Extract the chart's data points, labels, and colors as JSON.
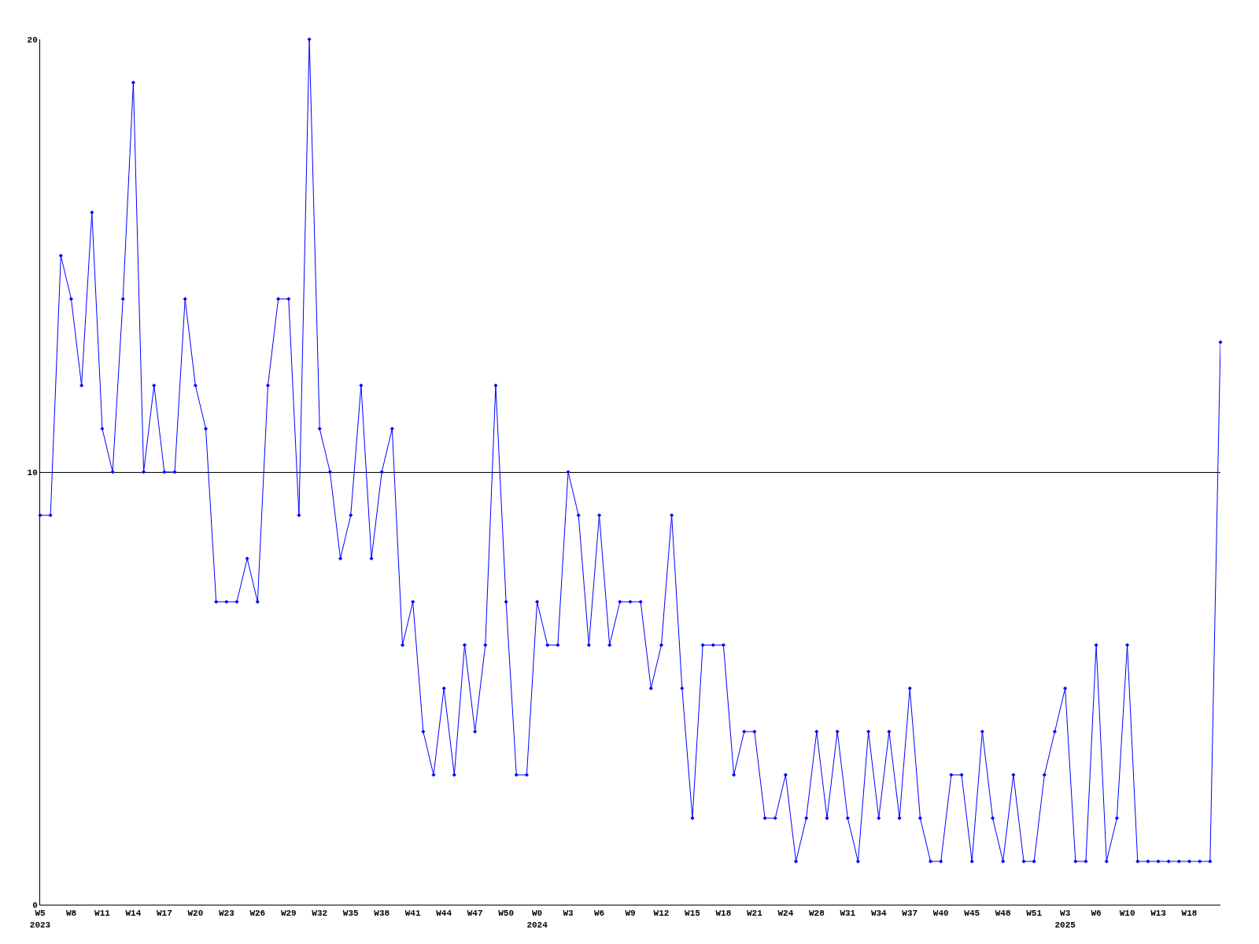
{
  "chart_data": {
    "type": "line",
    "categories": [
      "W5\n2023",
      null,
      null,
      "W8",
      null,
      null,
      "W11",
      null,
      null,
      "W14",
      null,
      null,
      "W17",
      null,
      null,
      "W20",
      null,
      null,
      "W23",
      null,
      null,
      "W26",
      null,
      null,
      "W29",
      null,
      null,
      "W32",
      null,
      null,
      "W35",
      null,
      null,
      "W38",
      null,
      null,
      "W41",
      null,
      null,
      "W44",
      null,
      null,
      "W47",
      null,
      null,
      "W50",
      null,
      null,
      "W0\n2024",
      null,
      null,
      "W3",
      null,
      null,
      "W6",
      null,
      null,
      "W9",
      null,
      null,
      "W12",
      null,
      null,
      "W15",
      null,
      null,
      "W18",
      null,
      null,
      "W21",
      null,
      null,
      "W24",
      null,
      null,
      "W28",
      null,
      null,
      "W31",
      null,
      null,
      "W34",
      null,
      null,
      "W37",
      null,
      null,
      "W40",
      null,
      null,
      "W45",
      null,
      null,
      "W48",
      null,
      null,
      "W51",
      null,
      null,
      "W3\n2025",
      null,
      null,
      "W6",
      null,
      null,
      "W10",
      null,
      null,
      "W13",
      null,
      null,
      "W18",
      null,
      null,
      null
    ],
    "series": [
      {
        "color": "#0000ff",
        "values": [
          9,
          9,
          15,
          14,
          12,
          16,
          11,
          10,
          14,
          19,
          10,
          12,
          10,
          10,
          14,
          12,
          11,
          7,
          7,
          7,
          8,
          7,
          12,
          14,
          14,
          9,
          20,
          11,
          10,
          8,
          9,
          12,
          8,
          10,
          11,
          6,
          7,
          4,
          3,
          5,
          3,
          6,
          4,
          6,
          12,
          7,
          3,
          3,
          7,
          6,
          6,
          10,
          9,
          6,
          9,
          6,
          7,
          7,
          7,
          5,
          6,
          9,
          5,
          2,
          6,
          6,
          6,
          3,
          4,
          4,
          2,
          2,
          3,
          1,
          2,
          4,
          2,
          4,
          2,
          1,
          4,
          2,
          4,
          2,
          5,
          2,
          1,
          1,
          3,
          3,
          1,
          4,
          2,
          1,
          3,
          1,
          1,
          3,
          4,
          5,
          1,
          1,
          6,
          1,
          2,
          6,
          1,
          1,
          1,
          1,
          1,
          1,
          1,
          1,
          13
        ]
      }
    ],
    "ylim": [
      0,
      20
    ],
    "yticks": [
      0,
      10,
      20
    ],
    "grid": "y",
    "marker": "diamond",
    "line_style": "solid"
  }
}
